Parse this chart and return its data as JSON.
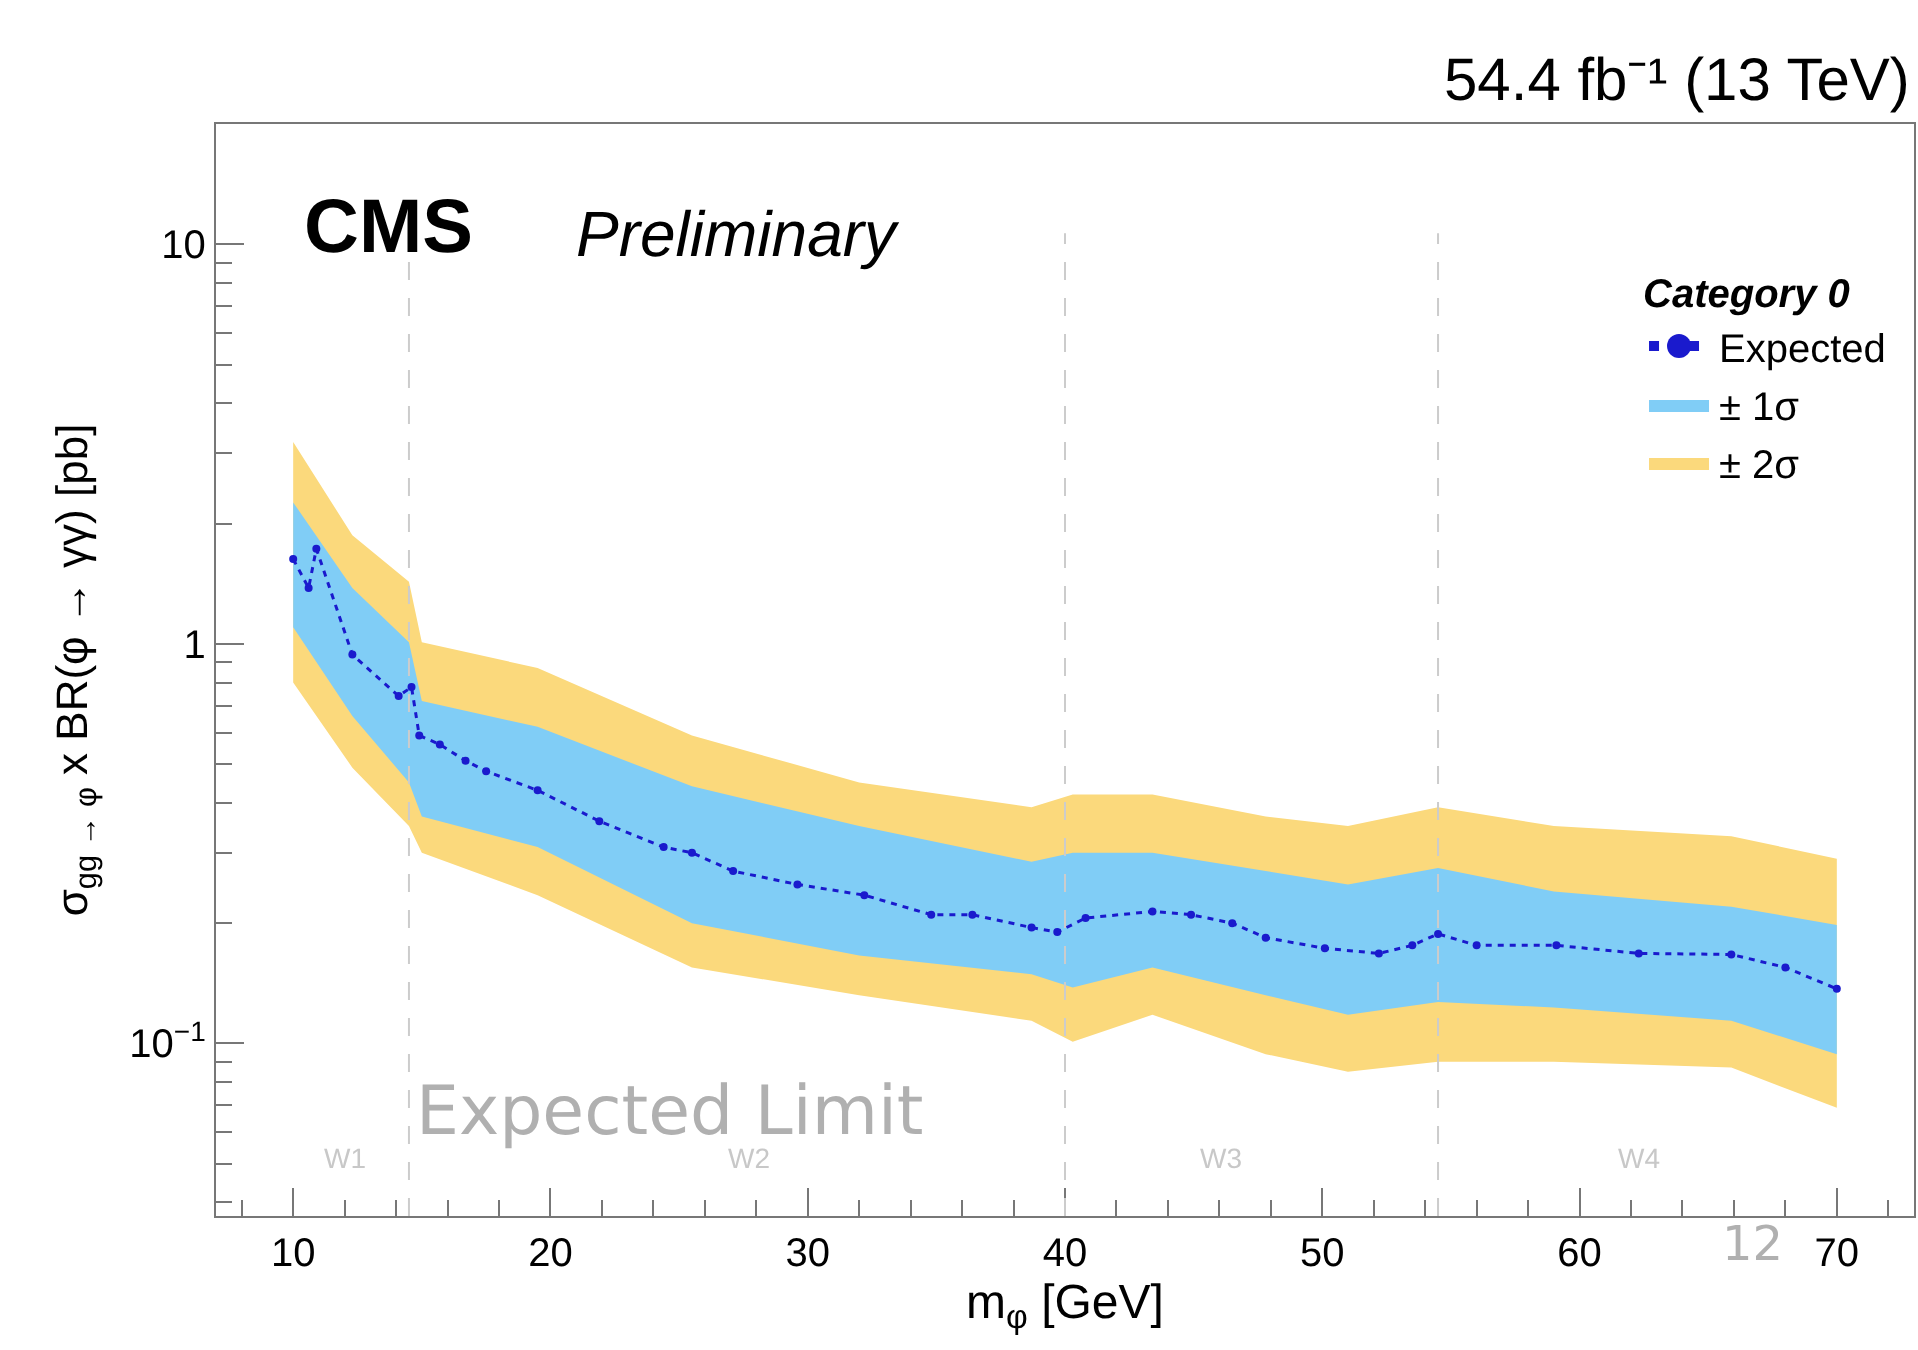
{
  "chart_data": {
    "type": "line",
    "title": "CMS",
    "subtitle": "Preliminary",
    "xlabel": "m$_{φ}$ [GeV]",
    "ylabel": "σ$_{gg → φ}$ x BR(φ → γγ) [pb]",
    "legend_title": "Category 0",
    "log": "y",
    "xlim": [
      7,
      73
    ],
    "ylim": [
      0.037,
      20
    ],
    "xticks": [
      10,
      20,
      30,
      40,
      50,
      60,
      70
    ],
    "yticks": [
      {
        "value": 0.1,
        "label": "10$^{−1}$"
      },
      1,
      10
    ],
    "legend": "top right",
    "series": [
      {
        "name": "± 2σ",
        "color": "#fbd97c",
        "x": [
          10,
          12.3,
          14.5,
          15,
          19.5,
          25.5,
          32,
          38.7,
          40.3,
          43.4,
          47.8,
          51,
          54.5,
          59,
          65.9,
          70
        ],
        "values": [
          null,
          null,
          null,
          null,
          null,
          null,
          null,
          null,
          null,
          null,
          null,
          null,
          null,
          null,
          null,
          null
        ],
        "lower": [
          0.8,
          0.49,
          0.35,
          0.3,
          0.235,
          0.155,
          0.132,
          0.114,
          0.101,
          0.118,
          0.094,
          0.085,
          0.09,
          0.09,
          0.087,
          0.069
        ],
        "upper": [
          3.2,
          1.87,
          1.43,
          1.01,
          0.87,
          0.59,
          0.45,
          0.39,
          0.42,
          0.42,
          0.37,
          0.35,
          0.39,
          0.35,
          0.33,
          0.29
        ]
      },
      {
        "name": "± 1σ",
        "color": "#80cdf6",
        "x": [
          10,
          12.3,
          14.5,
          15,
          19.5,
          25.5,
          32,
          38.7,
          40.3,
          43.4,
          47.8,
          51,
          54.5,
          59,
          65.9,
          70
        ],
        "values": [
          null,
          null,
          null,
          null,
          null,
          null,
          null,
          null,
          null,
          null,
          null,
          null,
          null,
          null,
          null,
          null
        ],
        "lower": [
          1.1,
          0.66,
          0.45,
          0.37,
          0.31,
          0.2,
          0.166,
          0.149,
          0.138,
          0.155,
          0.132,
          0.118,
          0.127,
          0.123,
          0.114,
          0.094
        ],
        "upper": [
          2.26,
          1.38,
          1.01,
          0.72,
          0.62,
          0.44,
          0.35,
          0.285,
          0.3,
          0.3,
          0.27,
          0.25,
          0.275,
          0.24,
          0.22,
          0.198
        ]
      },
      {
        "name": "Expected",
        "color": "#1a1acd",
        "marker": "circle",
        "line_style": "dotted",
        "x": [
          10,
          10.6,
          10.9,
          12.3,
          14.1,
          14.6,
          14.9,
          15.7,
          16.7,
          17.5,
          19.5,
          21.9,
          24.4,
          25.5,
          27.1,
          29.6,
          32.2,
          34.8,
          36.4,
          38.7,
          39.7,
          40.8,
          43.4,
          44.9,
          46.5,
          47.8,
          50.1,
          52.2,
          53.5,
          54.5,
          56,
          59.1,
          62.3,
          65.9,
          68,
          70
        ],
        "values": [
          1.63,
          1.38,
          1.73,
          0.94,
          0.74,
          0.78,
          0.59,
          0.56,
          0.51,
          0.48,
          0.43,
          0.36,
          0.31,
          0.3,
          0.27,
          0.25,
          0.235,
          0.21,
          0.21,
          0.195,
          0.19,
          0.206,
          0.214,
          0.21,
          0.2,
          0.184,
          0.173,
          0.168,
          0.176,
          0.188,
          0.176,
          0.176,
          0.168,
          0.167,
          0.155,
          0.137
        ]
      }
    ],
    "ref_lines": [
      {
        "axis": "x",
        "value": 14.5,
        "line_style": "dashed",
        "color": "#cccccc"
      },
      {
        "axis": "x",
        "value": 40,
        "line_style": "dashed",
        "color": "#cccccc"
      },
      {
        "axis": "x",
        "value": 54.5,
        "line_style": "dashed",
        "color": "#cccccc"
      }
    ],
    "annotations": [
      "54.4 fb⁻¹ (13 TeV)",
      "Expected Limit",
      "12",
      "W1",
      "W2",
      "W3",
      "W4"
    ]
  }
}
